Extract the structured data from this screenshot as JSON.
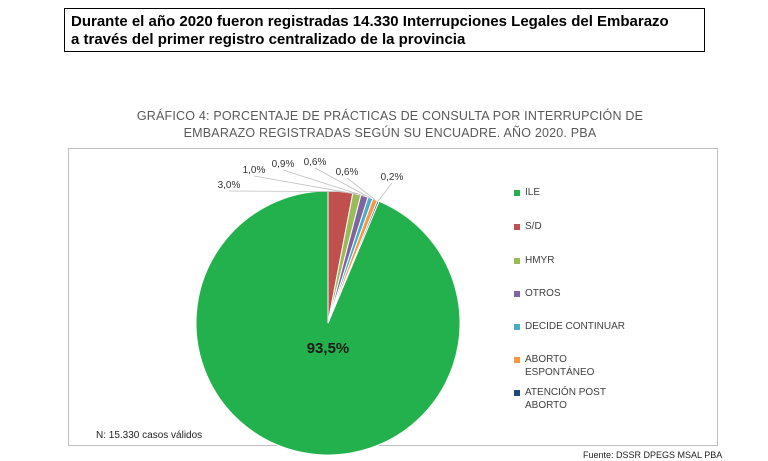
{
  "headline": {
    "line1": "Durante el año 2020 fueron registradas 14.330 Interrupciones Legales del Embarazo",
    "line2": "a través del primer registro centralizado de la provincia"
  },
  "chart_data": {
    "type": "pie",
    "title_line1": "GRÁFICO 4: PORCENTAJE DE PRÁCTICAS DE CONSULTA POR INTERRUPCIÓN DE",
    "title_line2": "EMBARAZO REGISTRADAS SEGÚN SU ENCUADRE. AÑO 2020. PBA",
    "slices": [
      {
        "label": "ILE",
        "value": 93.5,
        "display": "93,5%",
        "color": "#22b14c"
      },
      {
        "label": "S/D",
        "value": 3.0,
        "display": "3,0%",
        "color": "#c0504d"
      },
      {
        "label": "HMYR",
        "value": 1.0,
        "display": "1,0%",
        "color": "#9bbb59"
      },
      {
        "label": "OTROS",
        "value": 0.9,
        "display": "0,9%",
        "color": "#8064a2"
      },
      {
        "label": "DECIDE CONTINUAR",
        "value": 0.6,
        "display": "0,6%",
        "color": "#4bacc6"
      },
      {
        "label": "ABORTO ESPONTÁNEO",
        "value": 0.6,
        "display": "0,6%",
        "color": "#f79646"
      },
      {
        "label": "ATENCIÓN POST ABORTO",
        "value": 0.2,
        "display": "0,2%",
        "color": "#1f497d"
      }
    ],
    "legend_position": "right"
  },
  "note": "N: 15.330 casos válidos",
  "source": "Fuente: DSSR DPEGS MSAL PBA"
}
